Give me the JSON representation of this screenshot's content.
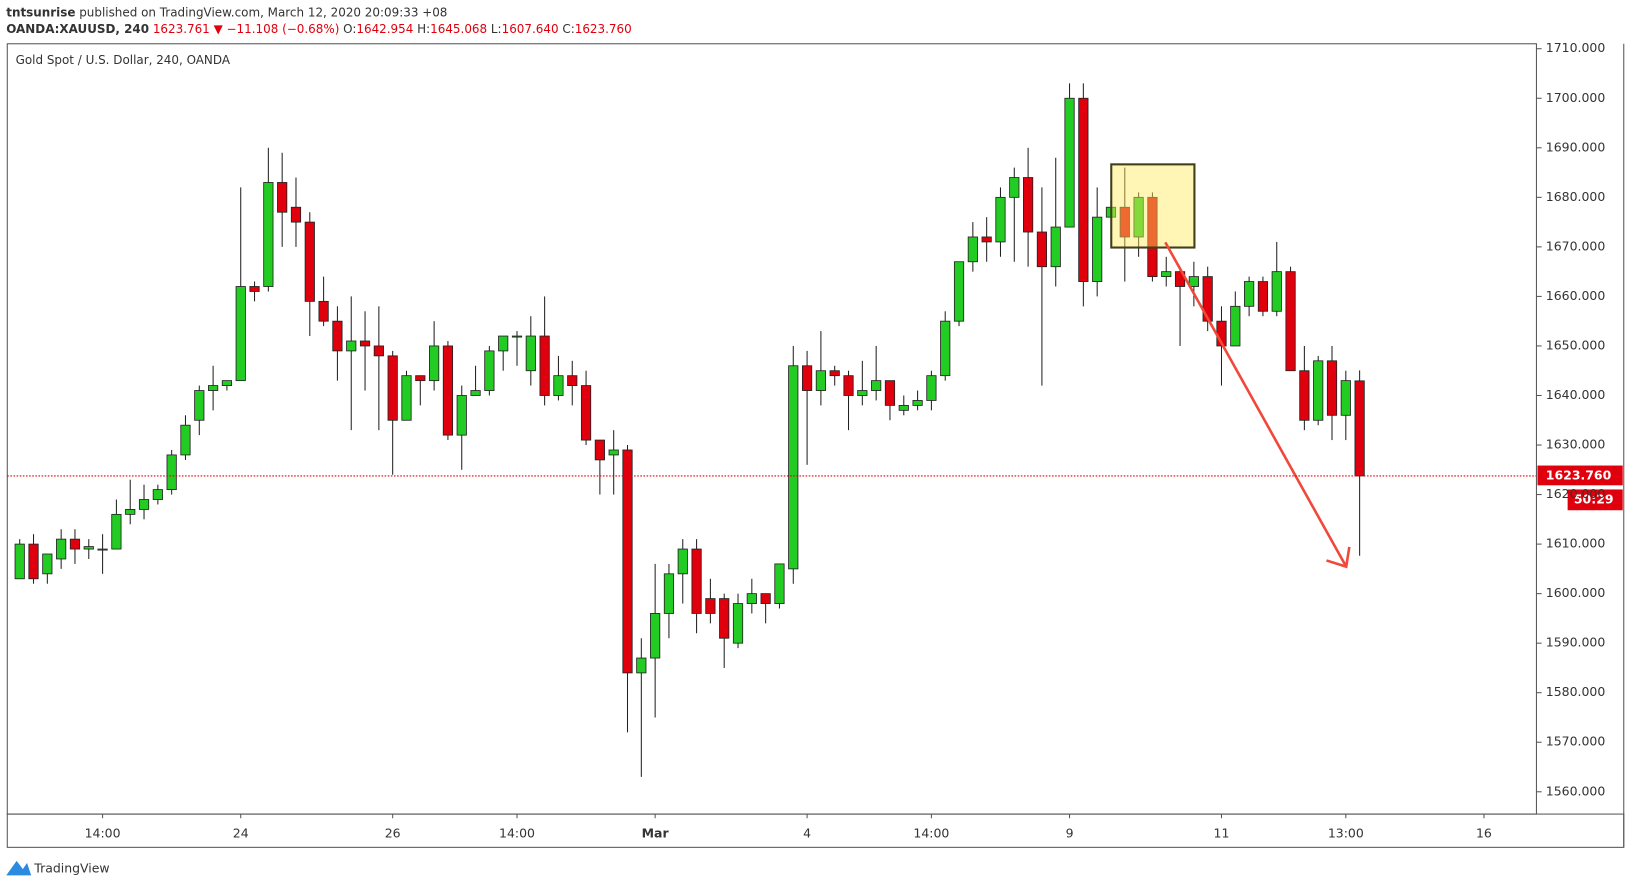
{
  "chart_data": {
    "type": "candlestick",
    "header": {
      "author": "tntsunrise",
      "published": "published on TradingView.com, March 12, 2020 20:09:33 +08",
      "symbol": "OANDA:XAUUSD, 240",
      "last": "1623.761",
      "change": "▼ −11.108 (−0.68%)",
      "ohlc": [
        {
          "key": "O:",
          "value": "1642.954"
        },
        {
          "key": "H:",
          "value": "1645.068"
        },
        {
          "key": "L:",
          "value": "1607.640"
        },
        {
          "key": "C:",
          "value": "1623.760"
        }
      ]
    },
    "title": "Gold Spot / U.S. Dollar, 240, OANDA",
    "up_color": "#22cc22",
    "down_color": "#e0000d",
    "open": [
      1603,
      1610,
      1604,
      1607,
      1611,
      1609,
      1609,
      1609,
      1616,
      1617,
      1619,
      1621,
      1628,
      1635,
      1641,
      1642,
      1643,
      1662,
      1662,
      1683,
      1678,
      1675,
      1659,
      1655,
      1649,
      1651,
      1650,
      1648,
      1635,
      1644,
      1643,
      1650,
      1632,
      1640,
      1641,
      1649,
      1652,
      1645,
      1652,
      1640,
      1644,
      1642,
      1631,
      1628,
      1629,
      1584,
      1587,
      1596,
      1604,
      1609,
      1599,
      1599,
      1590,
      1598,
      1600,
      1598,
      1605,
      1646,
      1641,
      1645,
      1644,
      1640,
      1641,
      1643,
      1637,
      1638,
      1639,
      1644,
      1655,
      1667,
      1672,
      1671,
      1680,
      1684,
      1673,
      1666,
      1674,
      1700,
      1663,
      1676,
      1678,
      1672,
      1680,
      1664,
      1665,
      1662,
      1664,
      1655,
      1650,
      1658,
      1663,
      1657,
      1665,
      1645,
      1635,
      1647,
      1636,
      1642.954
    ],
    "high": [
      1611,
      1612,
      1608,
      1613,
      1613,
      1611,
      1612,
      1619,
      1623,
      1622,
      1622,
      1629,
      1636,
      1642,
      1646,
      1643,
      1682,
      1663,
      1690,
      1689,
      1684,
      1677,
      1664,
      1658,
      1660,
      1657,
      1658,
      1649,
      1645,
      1644,
      1655,
      1651,
      1642,
      1646,
      1650,
      1652,
      1653,
      1656,
      1660,
      1648,
      1647,
      1645,
      1631,
      1633,
      1630,
      1591,
      1606,
      1606,
      1611,
      1611,
      1603,
      1600,
      1600,
      1603,
      1600,
      1606,
      1650,
      1649,
      1653,
      1646,
      1645,
      1647,
      1650,
      1643,
      1640,
      1641,
      1645,
      1657,
      1667,
      1675,
      1676,
      1682,
      1686,
      1690,
      1682,
      1688,
      1703,
      1703,
      1682,
      1680,
      1686,
      1681,
      1681,
      1668,
      1666,
      1667,
      1666,
      1658,
      1661,
      1664,
      1664,
      1671,
      1666,
      1650,
      1648,
      1650,
      1645,
      1645.068
    ],
    "low": [
      1603,
      1602,
      1602,
      1605,
      1606,
      1607,
      1604,
      1609,
      1614,
      1615,
      1618,
      1620,
      1627,
      1632,
      1637,
      1641,
      1643,
      1659,
      1661,
      1670,
      1670,
      1652,
      1654,
      1643,
      1633,
      1641,
      1633,
      1624,
      1635,
      1638,
      1641,
      1631,
      1625,
      1640,
      1640,
      1645,
      1646,
      1642,
      1638,
      1639,
      1638,
      1630,
      1620,
      1620,
      1572,
      1563,
      1575,
      1591,
      1598,
      1592,
      1594,
      1585,
      1589,
      1596,
      1594,
      1597,
      1602,
      1626,
      1638,
      1642,
      1633,
      1638,
      1639,
      1635,
      1636,
      1637,
      1637,
      1643,
      1654,
      1665,
      1667,
      1668,
      1667,
      1666,
      1642,
      1662,
      1674,
      1658,
      1660,
      1672,
      1663,
      1668,
      1663,
      1662,
      1650,
      1658,
      1653,
      1642,
      1650,
      1656,
      1656,
      1656,
      1645,
      1633,
      1634,
      1631,
      1631,
      1607.64
    ],
    "close": [
      1610,
      1603,
      1608,
      1611,
      1609,
      1609.5,
      1609,
      1616,
      1617,
      1619,
      1621,
      1628,
      1634,
      1641,
      1642,
      1643,
      1662,
      1661,
      1683,
      1677,
      1675,
      1659,
      1655,
      1649,
      1651,
      1650,
      1648,
      1635,
      1644,
      1643,
      1650,
      1632,
      1640,
      1641,
      1649,
      1652,
      1652,
      1652,
      1640,
      1644,
      1642,
      1631,
      1627,
      1629,
      1584,
      1587,
      1596,
      1604,
      1609,
      1596,
      1596,
      1591,
      1598,
      1600,
      1598,
      1606,
      1646,
      1641,
      1645,
      1644,
      1640,
      1641,
      1643,
      1638,
      1638,
      1639,
      1644,
      1655,
      1667,
      1672,
      1671,
      1680,
      1684,
      1673,
      1666,
      1674,
      1700,
      1663,
      1676,
      1678,
      1672,
      1680,
      1664,
      1665,
      1662,
      1664,
      1655,
      1650,
      1658,
      1663,
      1657,
      1665,
      1645,
      1635,
      1647,
      1636,
      1643,
      1623.76
    ],
    "xlim": [
      -0.9,
      109.8
    ],
    "xticks": [
      {
        "value": 6,
        "label": "14:00"
      },
      {
        "value": 16,
        "label": "24"
      },
      {
        "value": 27,
        "label": "26"
      },
      {
        "value": 36,
        "label": "14:00"
      },
      {
        "value": 46,
        "label": "Mar"
      },
      {
        "value": 57,
        "label": "4"
      },
      {
        "value": 66,
        "label": "14:00"
      },
      {
        "value": 76,
        "label": "9"
      },
      {
        "value": 87,
        "label": "11"
      },
      {
        "value": 96,
        "label": "13:00"
      },
      {
        "value": 106,
        "label": "16"
      }
    ],
    "ylim": [
      1555.5,
      1711
    ],
    "yticks": [
      {
        "value": 1560,
        "label": "1560.000"
      },
      {
        "value": 1570,
        "label": "1570.000"
      },
      {
        "value": 1580,
        "label": "1580.000"
      },
      {
        "value": 1590,
        "label": "1590.000"
      },
      {
        "value": 1600,
        "label": "1600.000"
      },
      {
        "value": 1610,
        "label": "1610.000"
      },
      {
        "value": 1620,
        "label": "1620.000"
      },
      {
        "value": 1630,
        "label": "1630.000"
      },
      {
        "value": 1640,
        "label": "1640.000"
      },
      {
        "value": 1650,
        "label": "1650.000"
      },
      {
        "value": 1660,
        "label": "1660.000"
      },
      {
        "value": 1670,
        "label": "1670.000"
      },
      {
        "value": 1680,
        "label": "1680.000"
      },
      {
        "value": 1690,
        "label": "1690.000"
      },
      {
        "value": 1700,
        "label": "1700.000"
      },
      {
        "value": 1710,
        "label": "1710.000"
      }
    ],
    "price_line": {
      "value": 1623.76,
      "label": "1623.760"
    },
    "countdown": "50:29",
    "brand": "TradingView"
  }
}
